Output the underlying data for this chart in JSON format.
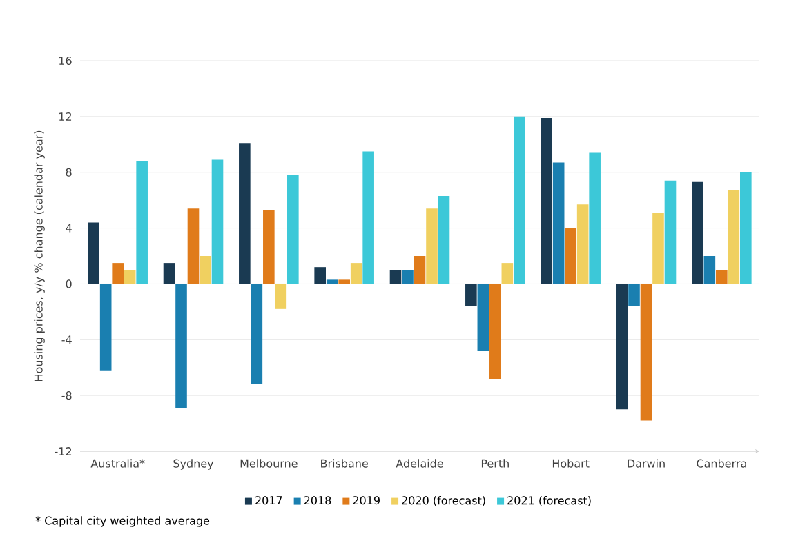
{
  "chart_data": {
    "type": "bar",
    "ylabel": "Housing prices, y/y % change (calendar year)",
    "categories": [
      "Australia*",
      "Sydney",
      "Melbourne",
      "Brisbane",
      "Adelaide",
      "Perth",
      "Hobart",
      "Darwin",
      "Canberra"
    ],
    "series": [
      {
        "name": "2017",
        "color": "#1a3a52",
        "values": [
          4.4,
          1.5,
          10.1,
          1.2,
          1.0,
          -1.6,
          11.9,
          -9.0,
          7.3
        ]
      },
      {
        "name": "2018",
        "color": "#1a7fb0",
        "values": [
          -6.2,
          -8.9,
          -7.2,
          0.3,
          1.0,
          -4.8,
          8.7,
          -1.6,
          2.0
        ]
      },
      {
        "name": "2019",
        "color": "#e07b1a",
        "values": [
          1.5,
          5.4,
          5.3,
          0.3,
          2.0,
          -6.8,
          4.0,
          -9.8,
          1.0
        ]
      },
      {
        "name": "2020 (forecast)",
        "color": "#f0d060",
        "values": [
          1.0,
          2.0,
          -1.8,
          1.5,
          5.4,
          1.5,
          5.7,
          5.1,
          6.7
        ]
      },
      {
        "name": "2021 (forecast)",
        "color": "#3cc8d8",
        "values": [
          8.8,
          8.9,
          7.8,
          9.5,
          6.3,
          12.0,
          9.4,
          7.4,
          8.0
        ]
      }
    ],
    "ylim": [
      -12,
      16
    ],
    "yticks": [
      -12,
      -8,
      -4,
      0,
      4,
      8,
      12,
      16
    ],
    "grid": "y",
    "legend": "bottom",
    "annotations": [
      "* Capital city weighted average"
    ]
  }
}
